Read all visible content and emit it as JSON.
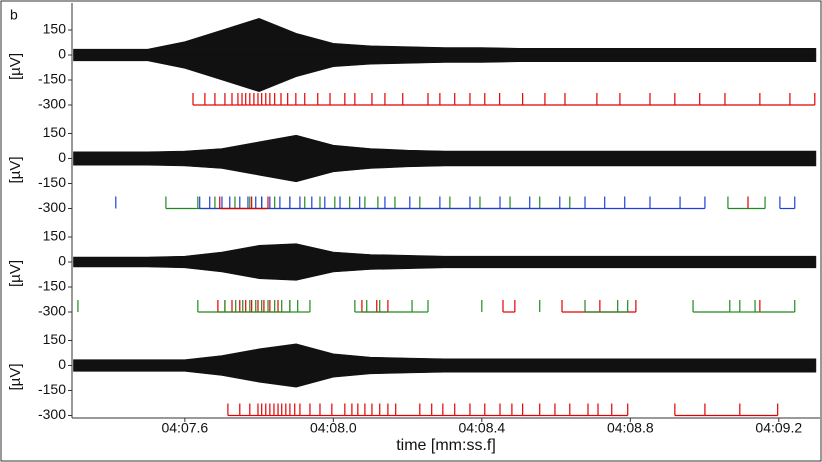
{
  "chart_data": {
    "type": "raster",
    "panel_label": "b",
    "xlabel": "time [mm:ss.f]",
    "xlim": [
      7.296,
      9.311
    ],
    "xticks": [
      {
        "value": 7.6,
        "label": "04:07.6"
      },
      {
        "value": 8.0,
        "label": "04:08.0"
      },
      {
        "value": 8.4,
        "label": "04:08.4"
      },
      {
        "value": 8.8,
        "label": "04:08.8"
      },
      {
        "value": 9.2,
        "label": "04:09.2"
      }
    ],
    "envelope_x": [
      7.3,
      7.4,
      7.5,
      7.6,
      7.7,
      7.8,
      7.9,
      8.0,
      8.1,
      8.2,
      8.3,
      8.4,
      8.5,
      8.6,
      8.7,
      8.8,
      8.9,
      9.0,
      9.1,
      9.2,
      9.3
    ],
    "panels": [
      {
        "ylabel": "[µV]",
        "ylim": [
          -318,
          300
        ],
        "yticks": [
          150,
          0,
          -150,
          -300
        ],
        "envelope": [
          35,
          35,
          35,
          80,
          150,
          220,
          130,
          70,
          55,
          50,
          45,
          45,
          40,
          40,
          40,
          40,
          40,
          40,
          40,
          40,
          40
        ],
        "units": [
          {
            "color": "#e00000",
            "times": [
              7.622,
              7.654,
              7.681,
              7.708,
              7.727,
              7.743,
              7.754,
              7.764,
              7.775,
              7.786,
              7.797,
              7.807,
              7.818,
              7.829,
              7.842,
              7.859,
              7.877,
              7.899,
              7.923,
              7.958,
              7.991,
              8.031,
              8.058,
              8.104,
              8.139,
              8.187,
              8.255,
              8.287,
              8.327,
              8.368,
              8.408,
              8.448,
              8.51,
              8.57,
              8.624,
              8.71,
              8.772,
              8.853,
              8.92,
              8.987,
              9.055,
              9.149,
              9.23,
              9.297
            ]
          }
        ]
      },
      {
        "ylabel": "[µV]",
        "ylim": [
          -318,
          300
        ],
        "yticks": [
          150,
          0,
          -150,
          -300
        ],
        "envelope": [
          40,
          40,
          40,
          45,
          60,
          100,
          140,
          80,
          60,
          50,
          45,
          45,
          45,
          45,
          45,
          45,
          45,
          45,
          45,
          45,
          45
        ],
        "units": [
          {
            "color": "#1f8a1f",
            "times": [
              7.549,
              7.635,
              7.681,
              7.735,
              7.775,
              7.807,
              7.842,
              7.883,
              7.923,
              7.964,
              8.004,
              8.044,
              8.085,
              8.12,
              8.166,
              8.233,
              8.314,
              8.395,
              8.476,
              8.556,
              8.637,
              9.063,
              9.163
            ]
          },
          {
            "color": "#1f3fd6",
            "times": [
              7.414,
              7.64,
              7.667,
              7.7,
              7.721,
              7.748,
              7.77,
              7.791,
              7.807,
              7.829,
              7.856,
              7.883,
              7.91,
              7.942,
              7.977,
              8.018,
              8.071,
              8.139,
              8.206,
              8.287,
              8.368,
              8.449,
              8.529,
              8.61,
              8.678,
              8.731,
              8.785,
              8.853,
              8.934,
              9.001,
              9.203,
              9.243
            ]
          },
          {
            "color": "#e00000",
            "times": [
              7.694,
              7.78,
              7.824,
              9.117
            ]
          }
        ]
      },
      {
        "ylabel": "[µV]",
        "ylim": [
          -318,
          300
        ],
        "yticks": [
          150,
          0,
          -150,
          -300
        ],
        "envelope": [
          30,
          30,
          30,
          35,
          60,
          100,
          110,
          60,
          45,
          40,
          35,
          35,
          35,
          35,
          35,
          35,
          35,
          35,
          35,
          35,
          35
        ],
        "units": [
          {
            "color": "#e00000",
            "times": [
              7.689,
              7.708,
              7.727,
              7.748,
              7.764,
              7.78,
              7.797,
              7.813,
              7.829,
              7.851,
              7.883,
              8.077,
              8.117,
              8.147,
              8.457,
              8.489,
              8.616,
              8.718,
              8.815,
              9.149
            ]
          },
          {
            "color": "#1f8a1f",
            "times": [
              7.312,
              7.635,
              7.708,
              7.737,
              7.756,
              7.775,
              7.791,
              7.807,
              7.824,
              7.842,
              7.861,
              7.883,
              7.904,
              7.937,
              8.058,
              8.09,
              8.125,
              8.212,
              8.255,
              8.4,
              8.556,
              8.678,
              8.766,
              8.793,
              8.969,
              9.068,
              9.095,
              9.136,
              9.243
            ]
          }
        ]
      },
      {
        "ylabel": "[µV]",
        "ylim": [
          -318,
          300
        ],
        "yticks": [
          150,
          0,
          -150,
          -300
        ],
        "envelope": [
          35,
          35,
          35,
          35,
          60,
          100,
          130,
          70,
          50,
          45,
          40,
          40,
          40,
          40,
          40,
          40,
          40,
          40,
          40,
          40,
          40
        ],
        "units": [
          {
            "color": "#e00000",
            "times": [
              7.716,
              7.748,
              7.775,
              7.797,
              7.807,
              7.818,
              7.829,
              7.84,
              7.851,
              7.861,
              7.872,
              7.883,
              7.896,
              7.91,
              7.937,
              7.964,
              7.996,
              8.031,
              8.05,
              8.066,
              8.085,
              8.104,
              8.125,
              8.147,
              8.168,
              8.233,
              8.265,
              8.295,
              8.327,
              8.368,
              8.408,
              8.449,
              8.481,
              8.51,
              8.556,
              8.597,
              8.637,
              8.686,
              8.713,
              8.75,
              8.793,
              8.92,
              9.001,
              9.095,
              9.197
            ]
          }
        ]
      }
    ]
  }
}
